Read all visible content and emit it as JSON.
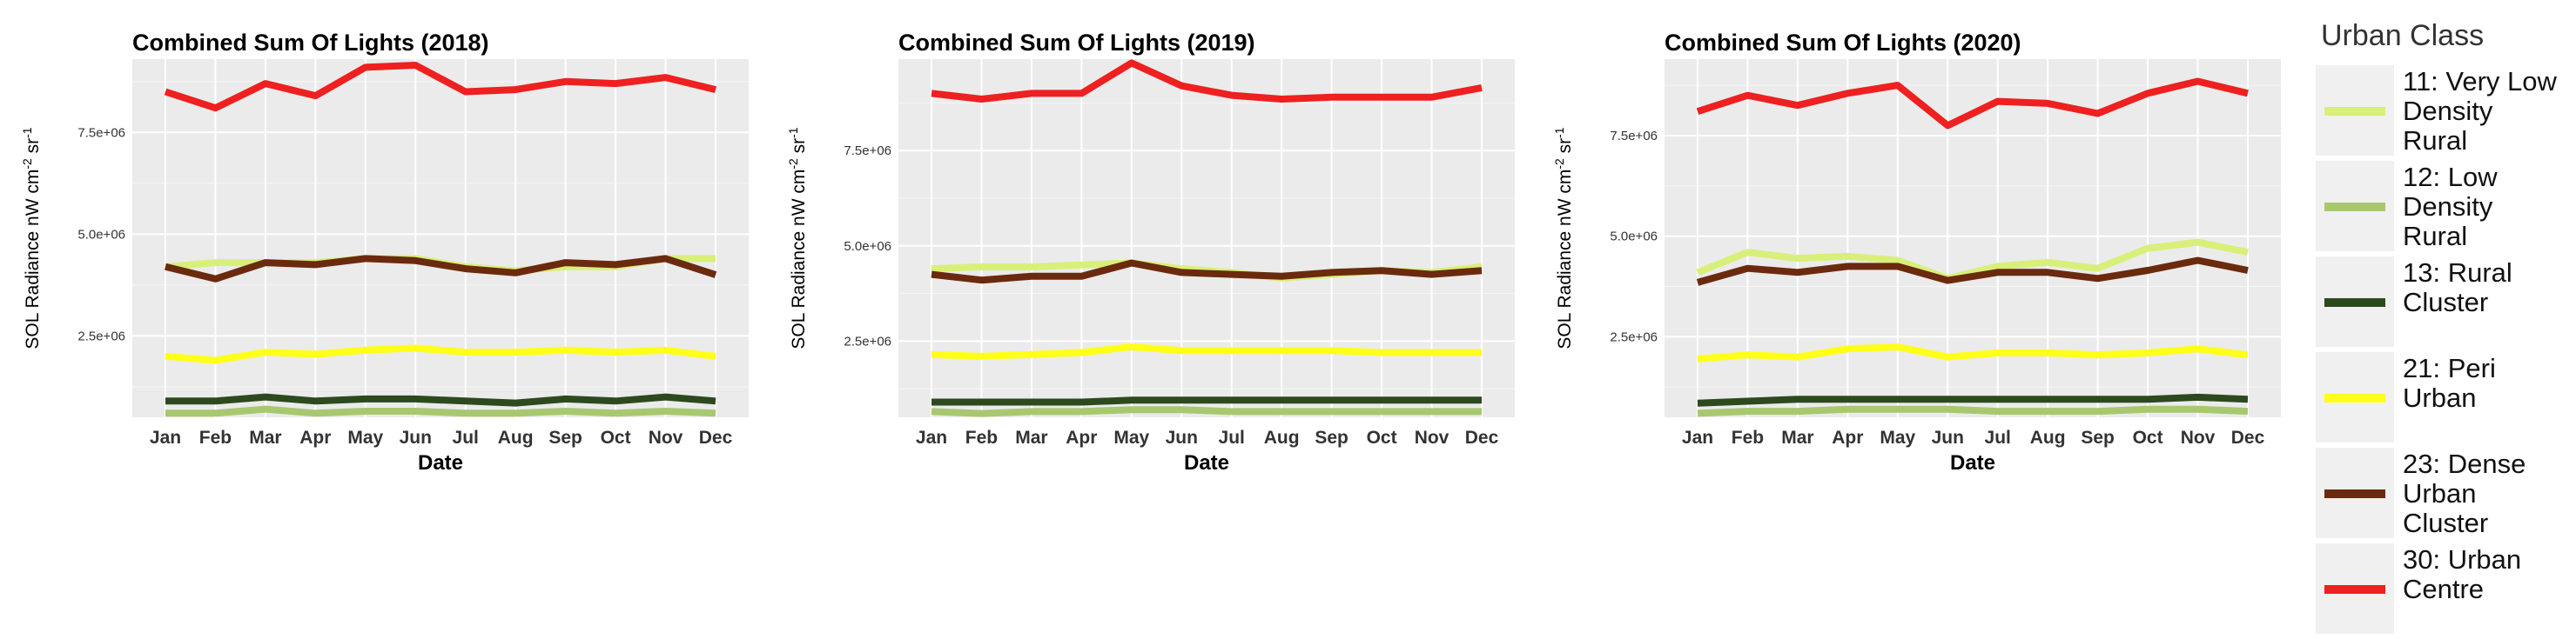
{
  "chart_data": [
    {
      "type": "line",
      "title": "Combined Sum Of Lights (2018)",
      "xlabel": "Date",
      "ylabel": "SOL Radiance nW cm",
      "ylabel_sup1": "-2",
      "ylabel_mid": " sr",
      "ylabel_sup2": "-1",
      "categories": [
        "Jan",
        "Feb",
        "Mar",
        "Apr",
        "May",
        "Jun",
        "Jul",
        "Aug",
        "Sep",
        "Oct",
        "Nov",
        "Dec"
      ],
      "yticks": [
        2500000,
        5000000,
        7500000
      ],
      "ytick_labels": [
        "2.5e+06",
        "5.0e+06",
        "7.5e+06"
      ],
      "ylim": [
        500000,
        9300000
      ],
      "grid": true,
      "series": [
        {
          "name": "11: Very Low Density Rural",
          "color": "#d8f07a",
          "values": [
            4200000,
            4300000,
            4300000,
            4300000,
            4400000,
            4400000,
            4200000,
            4100000,
            4200000,
            4200000,
            4400000,
            4400000
          ]
        },
        {
          "name": "12: Low Density Rural",
          "color": "#a8c870",
          "values": [
            600000,
            600000,
            700000,
            600000,
            650000,
            650000,
            600000,
            600000,
            650000,
            600000,
            650000,
            600000
          ]
        },
        {
          "name": "13: Rural Cluster",
          "color": "#2d4a1e",
          "values": [
            900000,
            900000,
            1000000,
            900000,
            950000,
            950000,
            900000,
            850000,
            950000,
            900000,
            1000000,
            900000
          ]
        },
        {
          "name": "21: Peri Urban",
          "color": "#ffff1a",
          "values": [
            2000000,
            1900000,
            2100000,
            2050000,
            2150000,
            2200000,
            2100000,
            2100000,
            2150000,
            2100000,
            2150000,
            2000000
          ]
        },
        {
          "name": "23: Dense Urban Cluster",
          "color": "#6b2a0e",
          "values": [
            4200000,
            3900000,
            4300000,
            4250000,
            4400000,
            4350000,
            4150000,
            4050000,
            4300000,
            4250000,
            4400000,
            4000000
          ]
        },
        {
          "name": "30: Urban Centre",
          "color": "#ee2020",
          "values": [
            8500000,
            8100000,
            8700000,
            8400000,
            9100000,
            9150000,
            8500000,
            8550000,
            8750000,
            8700000,
            8850000,
            8550000
          ]
        }
      ]
    },
    {
      "type": "line",
      "title": "Combined Sum Of Lights (2019)",
      "xlabel": "Date",
      "ylabel": "SOL Radiance nW cm",
      "ylabel_sup1": "-2",
      "ylabel_mid": " sr",
      "ylabel_sup2": "-1",
      "categories": [
        "Jan",
        "Feb",
        "Mar",
        "Apr",
        "May",
        "Jun",
        "Jul",
        "Aug",
        "Sep",
        "Oct",
        "Nov",
        "Dec"
      ],
      "yticks": [
        2500000,
        5000000,
        7500000
      ],
      "ytick_labels": [
        "2.5e+06",
        "5.0e+06",
        "7.5e+06"
      ],
      "ylim": [
        500000,
        9900000
      ],
      "grid": true,
      "series": [
        {
          "name": "11: Very Low Density Rural",
          "color": "#d8f07a",
          "values": [
            4400000,
            4450000,
            4450000,
            4500000,
            4550000,
            4400000,
            4300000,
            4150000,
            4250000,
            4350000,
            4300000,
            4450000
          ]
        },
        {
          "name": "12: Low Density Rural",
          "color": "#a8c870",
          "values": [
            650000,
            600000,
            650000,
            650000,
            700000,
            700000,
            650000,
            650000,
            650000,
            650000,
            650000,
            650000
          ]
        },
        {
          "name": "13: Rural Cluster",
          "color": "#2d4a1e",
          "values": [
            900000,
            900000,
            900000,
            900000,
            950000,
            950000,
            950000,
            950000,
            950000,
            950000,
            950000,
            950000
          ]
        },
        {
          "name": "21: Peri Urban",
          "color": "#ffff1a",
          "values": [
            2150000,
            2100000,
            2150000,
            2200000,
            2350000,
            2250000,
            2250000,
            2250000,
            2250000,
            2200000,
            2200000,
            2200000
          ]
        },
        {
          "name": "23: Dense Urban Cluster",
          "color": "#6b2a0e",
          "values": [
            4250000,
            4100000,
            4200000,
            4200000,
            4550000,
            4300000,
            4250000,
            4200000,
            4300000,
            4350000,
            4250000,
            4350000
          ]
        },
        {
          "name": "30: Urban Centre",
          "color": "#ee2020",
          "values": [
            9000000,
            8850000,
            9000000,
            9000000,
            9800000,
            9200000,
            8950000,
            8850000,
            8900000,
            8900000,
            8900000,
            9150000
          ]
        }
      ]
    },
    {
      "type": "line",
      "title": "Combined Sum Of Lights (2020)",
      "xlabel": "Date",
      "ylabel": "SOL Radiance nW cm",
      "ylabel_sup1": "-2",
      "ylabel_mid": " sr",
      "ylabel_sup2": "-1",
      "categories": [
        "Jan",
        "Feb",
        "Mar",
        "Apr",
        "May",
        "Jun",
        "Jul",
        "Aug",
        "Sep",
        "Oct",
        "Nov",
        "Dec"
      ],
      "yticks": [
        2500000,
        5000000,
        7500000
      ],
      "ytick_labels": [
        "2.5e+06",
        "5.0e+06",
        "7.5e+06"
      ],
      "ylim": [
        500000,
        9400000
      ],
      "grid": true,
      "series": [
        {
          "name": "11: Very Low Density Rural",
          "color": "#d8f07a",
          "values": [
            4100000,
            4600000,
            4450000,
            4500000,
            4400000,
            3950000,
            4250000,
            4350000,
            4200000,
            4700000,
            4850000,
            4600000
          ]
        },
        {
          "name": "12: Low Density Rural",
          "color": "#a8c870",
          "values": [
            600000,
            650000,
            650000,
            700000,
            700000,
            700000,
            650000,
            650000,
            650000,
            700000,
            700000,
            650000
          ]
        },
        {
          "name": "13: Rural Cluster",
          "color": "#2d4a1e",
          "values": [
            850000,
            900000,
            950000,
            950000,
            950000,
            950000,
            950000,
            950000,
            950000,
            950000,
            1000000,
            950000
          ]
        },
        {
          "name": "21: Peri Urban",
          "color": "#ffff1a",
          "values": [
            1950000,
            2050000,
            2000000,
            2200000,
            2250000,
            2000000,
            2100000,
            2100000,
            2050000,
            2100000,
            2200000,
            2050000
          ]
        },
        {
          "name": "23: Dense Urban Cluster",
          "color": "#6b2a0e",
          "values": [
            3850000,
            4200000,
            4100000,
            4250000,
            4250000,
            3900000,
            4100000,
            4100000,
            3950000,
            4150000,
            4400000,
            4150000
          ]
        },
        {
          "name": "30: Urban Centre",
          "color": "#ee2020",
          "values": [
            8100000,
            8500000,
            8250000,
            8550000,
            8750000,
            7750000,
            8350000,
            8300000,
            8050000,
            8550000,
            8850000,
            8550000
          ]
        }
      ]
    }
  ],
  "legend": {
    "title": "Urban Class",
    "placement": "right",
    "items": [
      {
        "label": "11: Very Low Density Rural",
        "color": "#d8f07a"
      },
      {
        "label": "12: Low Density Rural",
        "color": "#a8c870"
      },
      {
        "label": "13: Rural Cluster",
        "color": "#2d4a1e"
      },
      {
        "label": "21: Peri Urban",
        "color": "#ffff1a"
      },
      {
        "label": "23: Dense Urban Cluster",
        "color": "#6b2a0e"
      },
      {
        "label": "30: Urban Centre",
        "color": "#ee2020"
      }
    ]
  }
}
